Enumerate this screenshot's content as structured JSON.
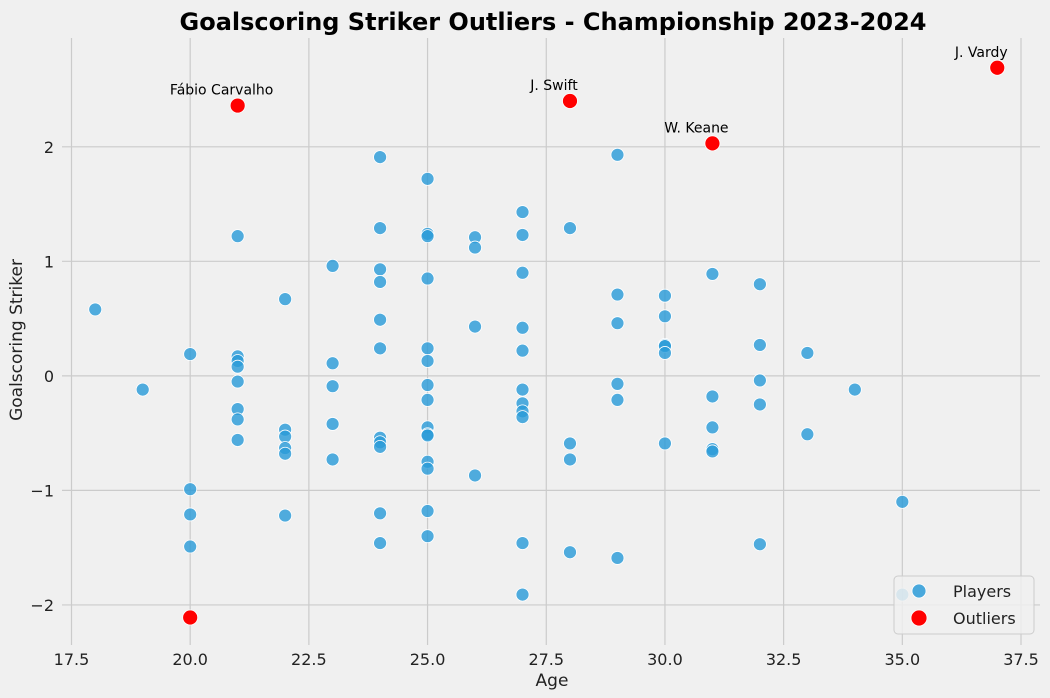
{
  "chart_data": {
    "type": "scatter",
    "title": "Goalscoring Striker Outliers - Championship 2023-2024",
    "xlabel": "Age",
    "ylabel": "Goalscoring Striker",
    "xlim": [
      17.3,
      37.9
    ],
    "ylim": [
      -2.35,
      2.95
    ],
    "xticks": [
      17.5,
      20.0,
      22.5,
      25.0,
      27.5,
      30.0,
      32.5,
      35.0,
      37.5
    ],
    "xtick_labels": [
      "17.5",
      "20.0",
      "22.5",
      "25.0",
      "27.5",
      "30.0",
      "32.5",
      "35.0",
      "37.5"
    ],
    "yticks": [
      -2,
      -1,
      0,
      1,
      2
    ],
    "ytick_labels": [
      "−2",
      "−1",
      "0",
      "1",
      "2"
    ],
    "grid": true,
    "legend_position": "bottom-right",
    "series": [
      {
        "name": "Players",
        "color": "#2b9bd8",
        "points": [
          [
            18,
            0.58
          ],
          [
            19,
            -0.12
          ],
          [
            20,
            0.19
          ],
          [
            20,
            -0.99
          ],
          [
            20,
            -1.21
          ],
          [
            20,
            -1.49
          ],
          [
            21,
            1.22
          ],
          [
            21,
            0.17
          ],
          [
            21,
            0.13
          ],
          [
            21,
            0.08
          ],
          [
            21,
            -0.05
          ],
          [
            21,
            -0.29
          ],
          [
            21,
            -0.38
          ],
          [
            21,
            -0.56
          ],
          [
            22,
            0.67
          ],
          [
            22,
            -0.47
          ],
          [
            22,
            -0.53
          ],
          [
            22,
            -0.63
          ],
          [
            22,
            -0.68
          ],
          [
            22,
            -1.22
          ],
          [
            23,
            0.96
          ],
          [
            23,
            0.11
          ],
          [
            23,
            -0.09
          ],
          [
            23,
            -0.42
          ],
          [
            23,
            -0.73
          ],
          [
            24,
            1.91
          ],
          [
            24,
            1.29
          ],
          [
            24,
            0.93
          ],
          [
            24,
            0.82
          ],
          [
            24,
            0.49
          ],
          [
            24,
            0.24
          ],
          [
            24,
            -0.54
          ],
          [
            24,
            -0.58
          ],
          [
            24,
            -0.62
          ],
          [
            24,
            -1.2
          ],
          [
            24,
            -1.46
          ],
          [
            25,
            1.72
          ],
          [
            25,
            1.24
          ],
          [
            25,
            1.22
          ],
          [
            25,
            0.85
          ],
          [
            25,
            0.24
          ],
          [
            25,
            0.13
          ],
          [
            25,
            -0.08
          ],
          [
            25,
            -0.21
          ],
          [
            25,
            -0.45
          ],
          [
            25,
            -0.51
          ],
          [
            25,
            -0.52
          ],
          [
            25,
            -0.75
          ],
          [
            25,
            -0.81
          ],
          [
            25,
            -1.18
          ],
          [
            25,
            -1.4
          ],
          [
            26,
            1.21
          ],
          [
            26,
            1.12
          ],
          [
            26,
            0.43
          ],
          [
            26,
            -0.87
          ],
          [
            27,
            1.43
          ],
          [
            27,
            1.23
          ],
          [
            27,
            0.9
          ],
          [
            27,
            0.42
          ],
          [
            27,
            0.22
          ],
          [
            27,
            -0.12
          ],
          [
            27,
            -0.24
          ],
          [
            27,
            -0.31
          ],
          [
            27,
            -0.36
          ],
          [
            27,
            -1.46
          ],
          [
            27,
            -1.91
          ],
          [
            28,
            1.29
          ],
          [
            28,
            -0.59
          ],
          [
            28,
            -0.73
          ],
          [
            28,
            -1.54
          ],
          [
            29,
            1.93
          ],
          [
            29,
            0.71
          ],
          [
            29,
            0.46
          ],
          [
            29,
            -0.07
          ],
          [
            29,
            -0.21
          ],
          [
            29,
            -1.59
          ],
          [
            30,
            0.7
          ],
          [
            30,
            0.52
          ],
          [
            30,
            0.27
          ],
          [
            30,
            0.26
          ],
          [
            30,
            0.2
          ],
          [
            30,
            -0.59
          ],
          [
            31,
            0.89
          ],
          [
            31,
            -0.18
          ],
          [
            31,
            -0.45
          ],
          [
            31,
            -0.64
          ],
          [
            31,
            -0.66
          ],
          [
            32,
            0.8
          ],
          [
            32,
            0.27
          ],
          [
            32,
            -0.04
          ],
          [
            32,
            -0.25
          ],
          [
            32,
            -1.47
          ],
          [
            33,
            0.2
          ],
          [
            33,
            -0.51
          ],
          [
            34,
            -0.12
          ],
          [
            35,
            -1.1
          ],
          [
            35,
            -1.91
          ]
        ]
      },
      {
        "name": "Outliers",
        "color": "#ff0000",
        "points": [
          [
            21,
            2.36
          ],
          [
            28,
            2.4
          ],
          [
            31,
            2.03
          ],
          [
            37,
            2.69
          ],
          [
            20,
            -2.11
          ]
        ],
        "labels": [
          "Fábio Carvalho",
          "J. Swift",
          "W. Keane",
          "J. Vardy",
          ""
        ]
      }
    ]
  }
}
